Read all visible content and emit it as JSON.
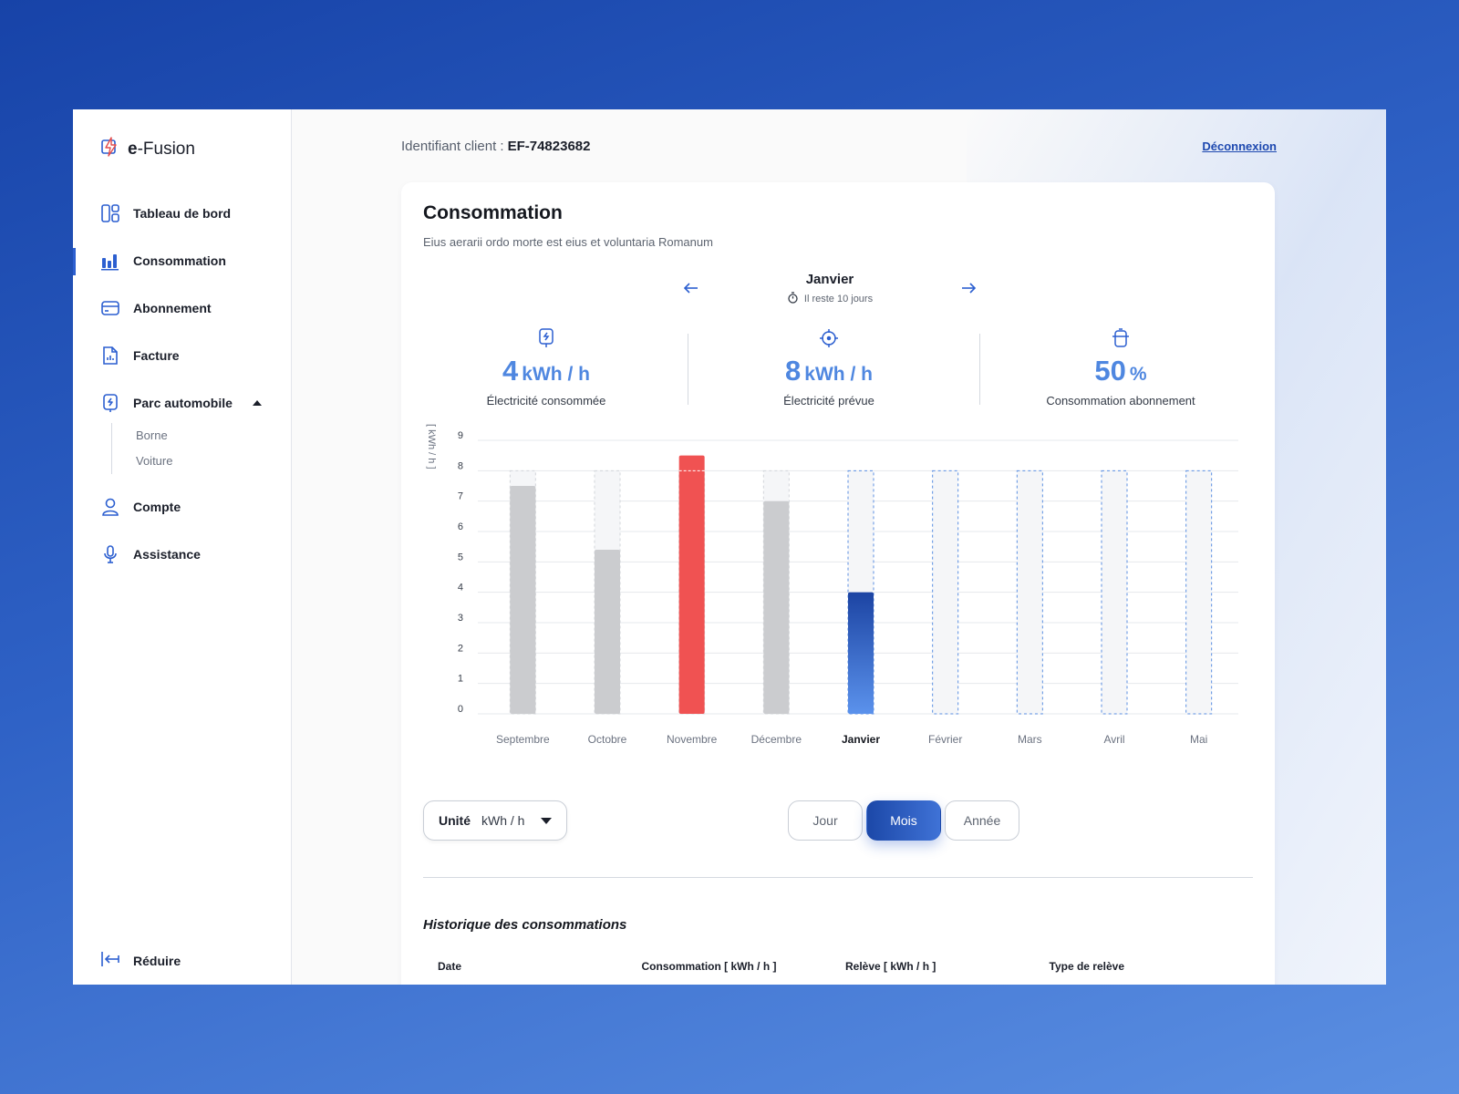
{
  "brand": {
    "name_bold": "e",
    "name_rest": "-Fusion"
  },
  "sidebar": {
    "items": [
      {
        "label": "Tableau de bord",
        "icon": "dashboard-icon"
      },
      {
        "label": "Consommation",
        "icon": "bar-chart-icon",
        "active": true
      },
      {
        "label": "Abonnement",
        "icon": "card-icon"
      },
      {
        "label": "Facture",
        "icon": "invoice-icon"
      },
      {
        "label": "Parc automobile",
        "icon": "charger-icon",
        "expanded": true
      },
      {
        "label": "Compte",
        "icon": "user-icon"
      },
      {
        "label": "Assistance",
        "icon": "microphone-icon"
      }
    ],
    "subitems": [
      "Borne",
      "Voiture"
    ],
    "reduce_label": "Réduire"
  },
  "header": {
    "client_label": "Identifiant client :",
    "client_id": "EF-74823682",
    "logout_label": "Déconnexion"
  },
  "main": {
    "title": "Consommation",
    "subtitle": "Eius aerarii ordo morte est eius et voluntaria Romanum",
    "period": {
      "month": "Janvier",
      "remaining": "Il reste 10 jours"
    },
    "stats": [
      {
        "value": "4",
        "unit": "kWh / h",
        "label": "Électricité consommée",
        "icon": "charger-icon"
      },
      {
        "value": "8",
        "unit": "kWh / h",
        "label": "Électricité prévue",
        "icon": "target-icon"
      },
      {
        "value": "50",
        "unit": "%",
        "label": "Consommation abonnement",
        "icon": "subscription-icon"
      }
    ],
    "unit_select": {
      "label": "Unité",
      "value": "kWh / h"
    },
    "period_toggle": {
      "day": "Jour",
      "month": "Mois",
      "year": "Année",
      "selected": "Mois"
    },
    "history_title": "Historique des consommations",
    "history_columns": [
      "Date",
      "Consommation [ kWh / h ]",
      "Relève [ kWh / h ]",
      "Type de relève"
    ]
  },
  "colors": {
    "accent": "#2c5fd0",
    "over": "#f05252",
    "past": "#cbcccf",
    "current_top": "#1c44a3",
    "current_bottom": "#5b92ec"
  },
  "chart_data": {
    "type": "bar",
    "ylabel": "[ kWh / h ]",
    "ylim": [
      0,
      9
    ],
    "yticks": [
      0,
      1,
      2,
      3,
      4,
      5,
      6,
      7,
      8,
      9
    ],
    "categories": [
      "Septembre",
      "Octobre",
      "Novembre",
      "Décembre",
      "Janvier",
      "Février",
      "Mars",
      "Avril",
      "Mai"
    ],
    "current_index": 4,
    "series": [
      {
        "values": [
          7.5,
          5.4,
          8.5,
          7.0,
          4.0,
          null,
          null,
          null,
          null
        ]
      },
      {
        "values": [
          8,
          8,
          8,
          8,
          8,
          8,
          8,
          8,
          8
        ]
      }
    ],
    "grid": true
  }
}
